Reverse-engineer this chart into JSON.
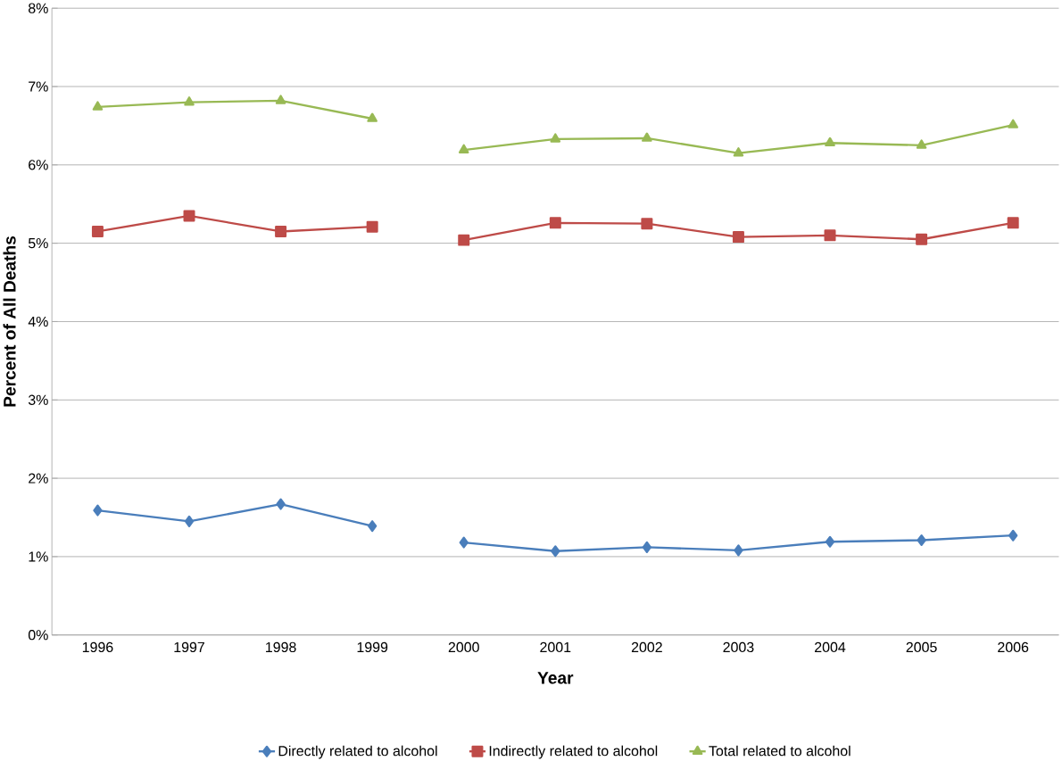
{
  "chart_data": {
    "type": "line",
    "xlabel": "Year",
    "ylabel": "Percent of All Deaths",
    "categories": [
      "1996",
      "1997",
      "1998",
      "1999",
      "2000",
      "2001",
      "2002",
      "2003",
      "2004",
      "2005",
      "2006"
    ],
    "series": [
      {
        "name": "Directly related to alcohol",
        "color": "#4a7ebb",
        "marker": "diamond",
        "values": [
          1.59,
          1.45,
          1.67,
          1.39,
          null,
          null,
          null,
          null,
          null,
          null,
          null
        ]
      },
      {
        "color": "#4a7ebb",
        "marker": "diamond",
        "values": [
          null,
          null,
          null,
          null,
          1.18,
          1.07,
          1.12,
          1.08,
          1.19,
          1.21,
          1.27
        ]
      },
      {
        "name": "Indirectly related to alcohol",
        "color": "#be4b48",
        "marker": "square",
        "values": [
          5.15,
          5.35,
          5.15,
          5.21,
          null,
          null,
          null,
          null,
          null,
          null,
          null
        ]
      },
      {
        "color": "#be4b48",
        "marker": "square",
        "values": [
          null,
          null,
          null,
          null,
          5.04,
          5.26,
          5.25,
          5.08,
          5.1,
          5.05,
          5.26
        ]
      },
      {
        "name": "Total related to alcohol",
        "color": "#98b954",
        "marker": "triangle",
        "values": [
          6.74,
          6.8,
          6.82,
          6.59,
          null,
          null,
          null,
          null,
          null,
          null,
          null
        ]
      },
      {
        "color": "#98b954",
        "marker": "triangle",
        "values": [
          null,
          null,
          null,
          null,
          6.19,
          6.33,
          6.34,
          6.15,
          6.28,
          6.25,
          6.51
        ]
      }
    ],
    "ylim": [
      0,
      8
    ],
    "yticks": [
      {
        "value": 0,
        "label": "0%"
      },
      {
        "value": 1,
        "label": "1%"
      },
      {
        "value": 2,
        "label": "2%"
      },
      {
        "value": 3,
        "label": "3%"
      },
      {
        "value": 4,
        "label": "4%"
      },
      {
        "value": 5,
        "label": "5%"
      },
      {
        "value": 6,
        "label": "6%"
      },
      {
        "value": 7,
        "label": "7%"
      },
      {
        "value": 8,
        "label": "8%"
      }
    ],
    "grid": "y",
    "legend": "bottom",
    "line_style": "solid"
  }
}
